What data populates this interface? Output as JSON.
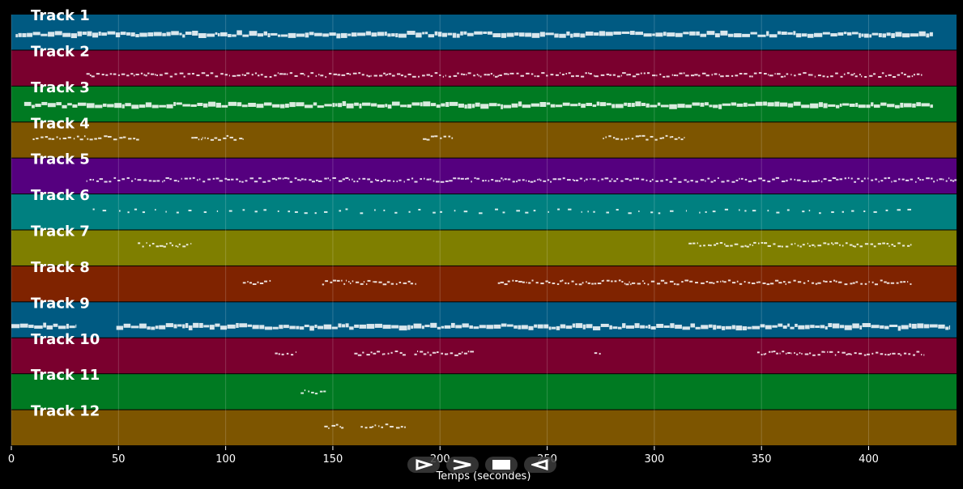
{
  "chart_data": {
    "type": "piano-roll",
    "title": "",
    "xlabel": "Temps (secondes)",
    "ylabel": "",
    "xlim": [
      0,
      441
    ],
    "xticks": [
      0,
      50,
      100,
      150,
      200,
      250,
      300,
      350,
      400
    ],
    "grid": true,
    "tracks": [
      {
        "name": "Track 1",
        "color": "#005a82",
        "pitch_level": 0.55,
        "segments": [
          [
            2,
            430
          ]
        ]
      },
      {
        "name": "Track 2",
        "color": "#7a002e",
        "pitch_level": 0.68,
        "segments": [
          [
            35,
            425
          ]
        ]
      },
      {
        "name": "Track 3",
        "color": "#007a22",
        "pitch_level": 0.52,
        "segments": [
          [
            6,
            430
          ]
        ]
      },
      {
        "name": "Track 4",
        "color": "#7d5500",
        "pitch_level": 0.43,
        "segments": [
          [
            10,
            60
          ],
          [
            84,
            108
          ],
          [
            192,
            206
          ],
          [
            276,
            314
          ]
        ]
      },
      {
        "name": "Track 5",
        "color": "#55007f",
        "pitch_level": 0.6,
        "segments": [
          [
            35,
            441
          ]
        ]
      },
      {
        "name": "Track 6",
        "color": "#008080",
        "pitch_level": 0.47,
        "segments": [
          [
            38,
            420
          ]
        ]
      },
      {
        "name": "Track 7",
        "color": "#7f7f00",
        "pitch_level": 0.4,
        "segments": [
          [
            59,
            84
          ],
          [
            316,
            420
          ]
        ]
      },
      {
        "name": "Track 8",
        "color": "#7f2300",
        "pitch_level": 0.45,
        "segments": [
          [
            108,
            121
          ],
          [
            145,
            189
          ],
          [
            227,
            420
          ]
        ]
      },
      {
        "name": "Track 9",
        "color": "#005a82",
        "pitch_level": 0.68,
        "segments": [
          [
            0,
            30
          ],
          [
            49,
            438
          ]
        ]
      },
      {
        "name": "Track 10",
        "color": "#7a002e",
        "pitch_level": 0.42,
        "segments": [
          [
            123,
            133
          ],
          [
            160,
            184
          ],
          [
            188,
            216
          ],
          [
            272,
            276
          ],
          [
            348,
            426
          ]
        ]
      },
      {
        "name": "Track 11",
        "color": "#007a22",
        "pitch_level": 0.5,
        "segments": [
          [
            135,
            147
          ]
        ]
      },
      {
        "name": "Track 12",
        "color": "#7d5500",
        "pitch_level": 0.45,
        "segments": [
          [
            146,
            155
          ],
          [
            163,
            184
          ]
        ]
      }
    ]
  },
  "controls": [
    {
      "name": "play-forward",
      "icon": "play-outline-icon"
    },
    {
      "name": "next",
      "icon": "chevron-right-icon"
    },
    {
      "name": "stop",
      "icon": "stop-icon"
    },
    {
      "name": "play-backward",
      "icon": "play-reverse-icon"
    }
  ]
}
